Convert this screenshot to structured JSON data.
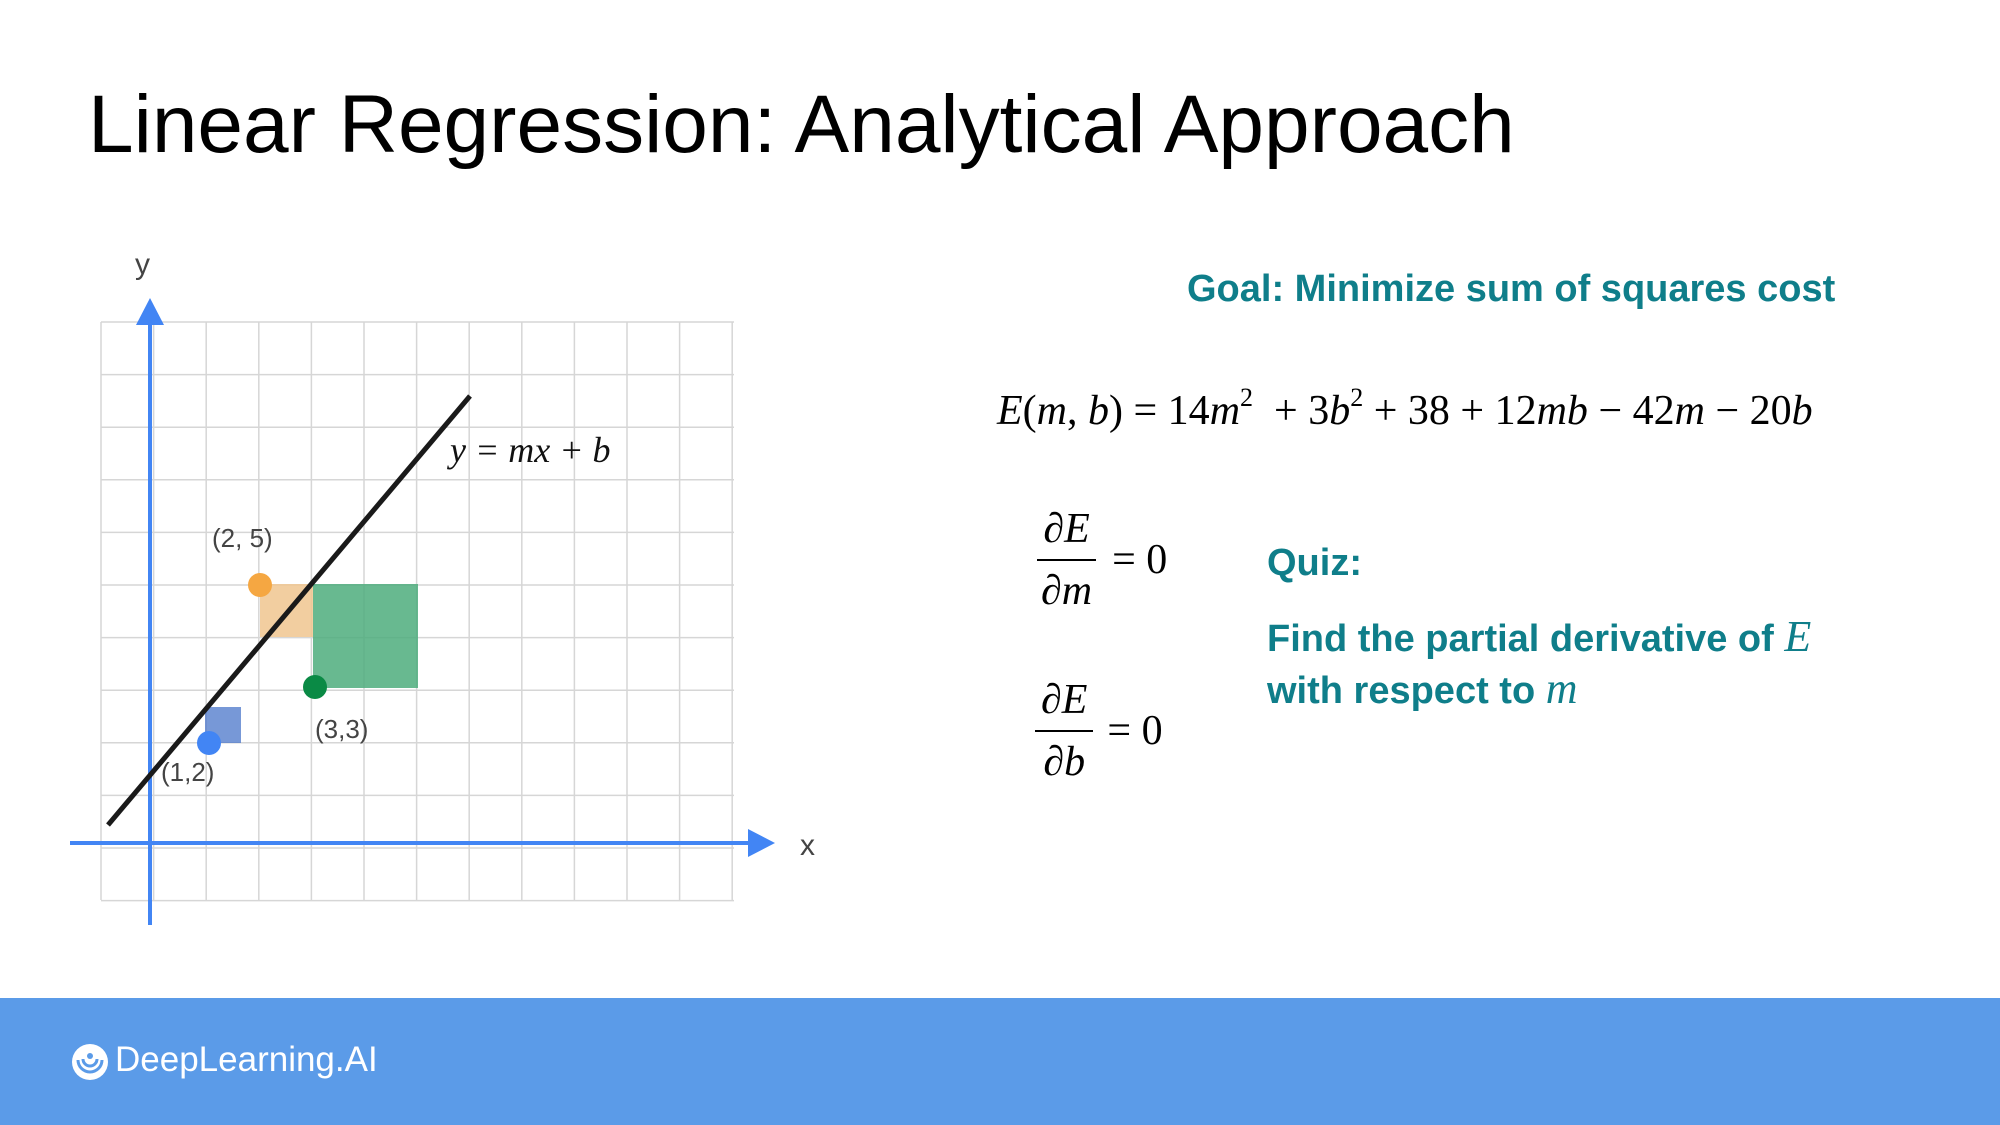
{
  "slide": {
    "title": "Linear Regression: Analytical Approach"
  },
  "plot": {
    "axis_label_x": "x",
    "axis_label_y": "y",
    "line_equation": "y = mx + b",
    "colors": {
      "axis": "#4285f4",
      "grid": "#d6d6d6",
      "line": "#1a1a1a",
      "point_blue": "#4285f4",
      "point_orange": "#f5a742",
      "point_green": "#0a8a45"
    },
    "points": [
      {
        "label": "(1,2)",
        "x": 1,
        "y": 2,
        "color": "blue"
      },
      {
        "label": "(2, 5)",
        "x": 2,
        "y": 5,
        "color": "orange"
      },
      {
        "label": "(3,3)",
        "x": 3,
        "y": 3,
        "color": "green"
      }
    ]
  },
  "goal": {
    "text": "Goal: Minimize sum of squares cost"
  },
  "equation": {
    "lhs": "E(m, b)",
    "rhs_terms": [
      "14m²",
      "+ 3b²",
      "+ 38",
      "+ 12mb",
      "− 42m",
      "− 20b"
    ]
  },
  "derivatives": {
    "m": {
      "numerator": "∂E",
      "denominator": "∂m",
      "equals": "= 0"
    },
    "b": {
      "numerator": "∂E",
      "denominator": "∂b",
      "equals": "= 0"
    }
  },
  "quiz": {
    "title": "Quiz:",
    "line1": "Find the partial derivative of",
    "var1": "E",
    "line2": "with respect to",
    "var2": "m"
  },
  "footer": {
    "brand": "DeepLearning.AI",
    "background": "#5b9be8",
    "logo_icon": "deeplearning-ai-logo-icon"
  }
}
